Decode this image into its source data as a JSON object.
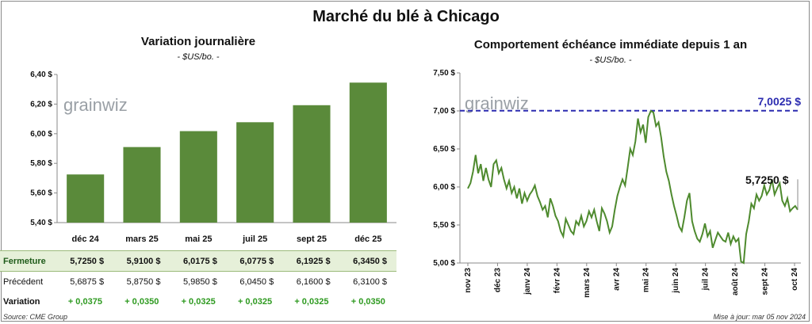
{
  "main_title": "Marché du blé à Chicago",
  "left": {
    "title": "Variation journalière",
    "unit": "- $US/bo. -",
    "watermark": "grainwiz",
    "table": {
      "rows": [
        {
          "label": "Fermeture",
          "values": [
            "5,7250 $",
            "5,9100 $",
            "6,0175 $",
            "6,0775 $",
            "6,1925 $",
            "6,3450 $"
          ]
        },
        {
          "label": "Précédent",
          "values": [
            "5,6875 $",
            "5,8750 $",
            "5,9850 $",
            "6,0450 $",
            "6,1600 $",
            "6,3100 $"
          ]
        },
        {
          "label": "Variation",
          "values": [
            "+ 0,0375",
            "+ 0,0350",
            "+ 0,0325",
            "+ 0,0325",
            "+ 0,0325",
            "+ 0,0350"
          ]
        }
      ]
    }
  },
  "right": {
    "title": "Comportement échéance immédiate depuis 1 an",
    "unit": "- $US/bo. -",
    "watermark": "grainwiz",
    "max_label": "7,0025 $",
    "last_label": "5,7250 $"
  },
  "footer": {
    "source": "Source: CME Group",
    "updated": "Mise à jour: mar 05 nov 2024"
  },
  "chart_data": [
    {
      "type": "bar",
      "title": "Variation journalière",
      "categories": [
        "déc 24",
        "mars 25",
        "mai 25",
        "juil 25",
        "sept 25",
        "déc 25"
      ],
      "values": [
        5.725,
        5.91,
        6.0175,
        6.0775,
        6.1925,
        6.345
      ],
      "ylim": [
        5.4,
        6.4
      ],
      "yticks": [
        "5,40 $",
        "5,60 $",
        "5,80 $",
        "6,00 $",
        "6,20 $",
        "6,40 $"
      ],
      "bar_color": "#5a8a3a"
    },
    {
      "type": "line",
      "title": "Comportement échéance immédiate depuis 1 an",
      "x_labels": [
        "nov 23",
        "déc 23",
        "janv 24",
        "févr 24",
        "mars 24",
        "avr 24",
        "mai 24",
        "juin 24",
        "juil 24",
        "août 24",
        "sept 24",
        "oct 24"
      ],
      "ylim": [
        5.0,
        7.5
      ],
      "yticks": [
        "5,00 $",
        "5,50 $",
        "6,00 $",
        "6,50 $",
        "7,00 $",
        "7,50 $"
      ],
      "line_color": "#4e8a2e",
      "reference_line": {
        "value": 7.0025,
        "color": "#2b2bb0"
      },
      "y": [
        5.98,
        6.05,
        6.2,
        6.42,
        6.18,
        6.3,
        6.08,
        6.25,
        6.1,
        6.0,
        6.3,
        6.35,
        6.18,
        6.25,
        6.1,
        5.98,
        6.08,
        5.92,
        6.0,
        5.85,
        5.98,
        5.78,
        5.92,
        5.82,
        5.9,
        5.95,
        6.02,
        5.88,
        5.8,
        5.7,
        5.75,
        5.6,
        5.85,
        5.75,
        5.62,
        5.55,
        5.42,
        5.35,
        5.58,
        5.5,
        5.42,
        5.38,
        5.55,
        5.5,
        5.62,
        5.48,
        5.55,
        5.68,
        5.6,
        5.7,
        5.55,
        5.42,
        5.72,
        5.65,
        5.55,
        5.4,
        5.48,
        5.7,
        5.88,
        6.0,
        6.1,
        6.02,
        6.25,
        6.5,
        6.42,
        6.6,
        6.9,
        6.72,
        6.82,
        6.58,
        6.92,
        7.0,
        6.98,
        6.8,
        6.85,
        6.65,
        6.4,
        6.2,
        6.08,
        5.9,
        5.75,
        5.62,
        5.48,
        5.42,
        5.6,
        5.82,
        5.92,
        5.55,
        5.42,
        5.32,
        5.28,
        5.38,
        5.52,
        5.35,
        5.42,
        5.2,
        5.3,
        5.4,
        5.35,
        5.3,
        5.28,
        5.4,
        5.25,
        5.35,
        5.28,
        5.32,
        5.02,
        5.0,
        5.38,
        5.55,
        5.78,
        5.72,
        5.9,
        5.82,
        5.88,
        6.02,
        5.9,
        5.96,
        6.1,
        5.9,
        5.98,
        6.05,
        5.82,
        5.75,
        5.85,
        5.68,
        5.72,
        5.75,
        5.7
      ]
    }
  ]
}
